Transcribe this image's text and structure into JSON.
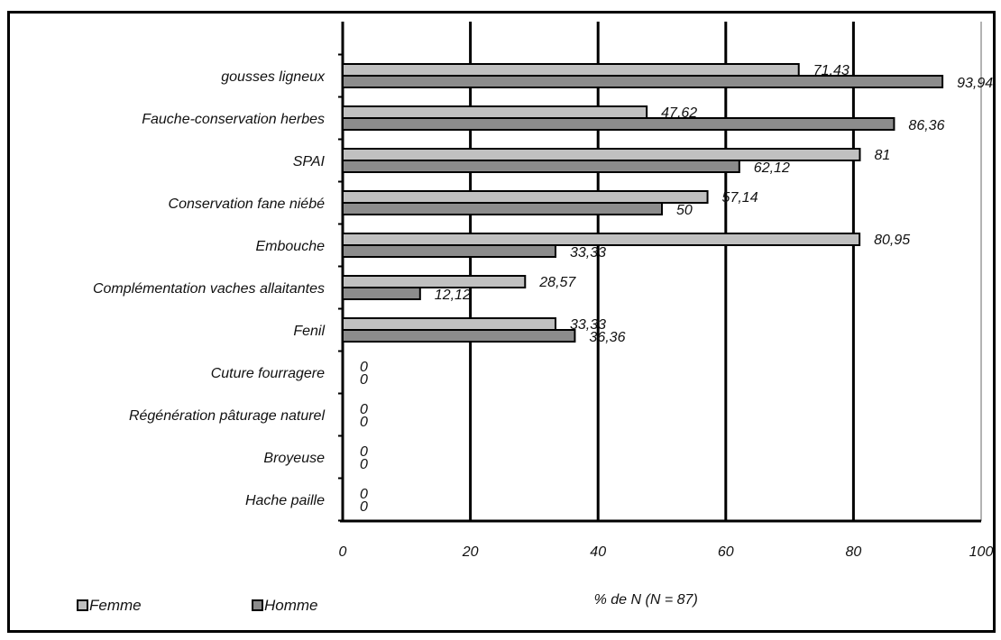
{
  "chart_data": {
    "type": "bar",
    "orientation": "horizontal",
    "categories": [
      "gousses ligneux",
      "Fauche-conservation herbes",
      "SPAI",
      "Conservation fane niébé",
      "Embouche",
      "Complémentation vaches allaitantes",
      "Fenil",
      "Cuture fourragere",
      "Régénération pâturage naturel",
      "Broyeuse",
      "Hache paille"
    ],
    "series": [
      {
        "name": "Femme",
        "color": "#c0c0c0",
        "values": [
          71.43,
          47.62,
          81,
          57.14,
          80.95,
          28.57,
          33.33,
          0,
          0,
          0,
          0
        ],
        "labels": [
          "71,43",
          "47,62",
          "81",
          "57,14",
          "80,95",
          "28,57",
          "33,33",
          "0",
          "0",
          "0",
          "0"
        ]
      },
      {
        "name": "Homme",
        "color": "#8c8c8c",
        "values": [
          93.94,
          86.36,
          62.12,
          50,
          33.33,
          12.12,
          36.36,
          0,
          0,
          0,
          0
        ],
        "labels": [
          "93,94",
          "86,36",
          "62,12",
          "50",
          "33,33",
          "12,12",
          "36,36",
          "0",
          "0",
          "0",
          "0"
        ]
      }
    ],
    "xlim": [
      0,
      100
    ],
    "x_ticks": [
      0,
      20,
      40,
      60,
      80,
      100
    ],
    "x_tick_labels": [
      "0",
      "20",
      "40",
      "60",
      "80",
      "100"
    ],
    "xlabel": "% de N (N = 87)",
    "title": "",
    "grid": "vertical",
    "legend": "bottom-left"
  }
}
